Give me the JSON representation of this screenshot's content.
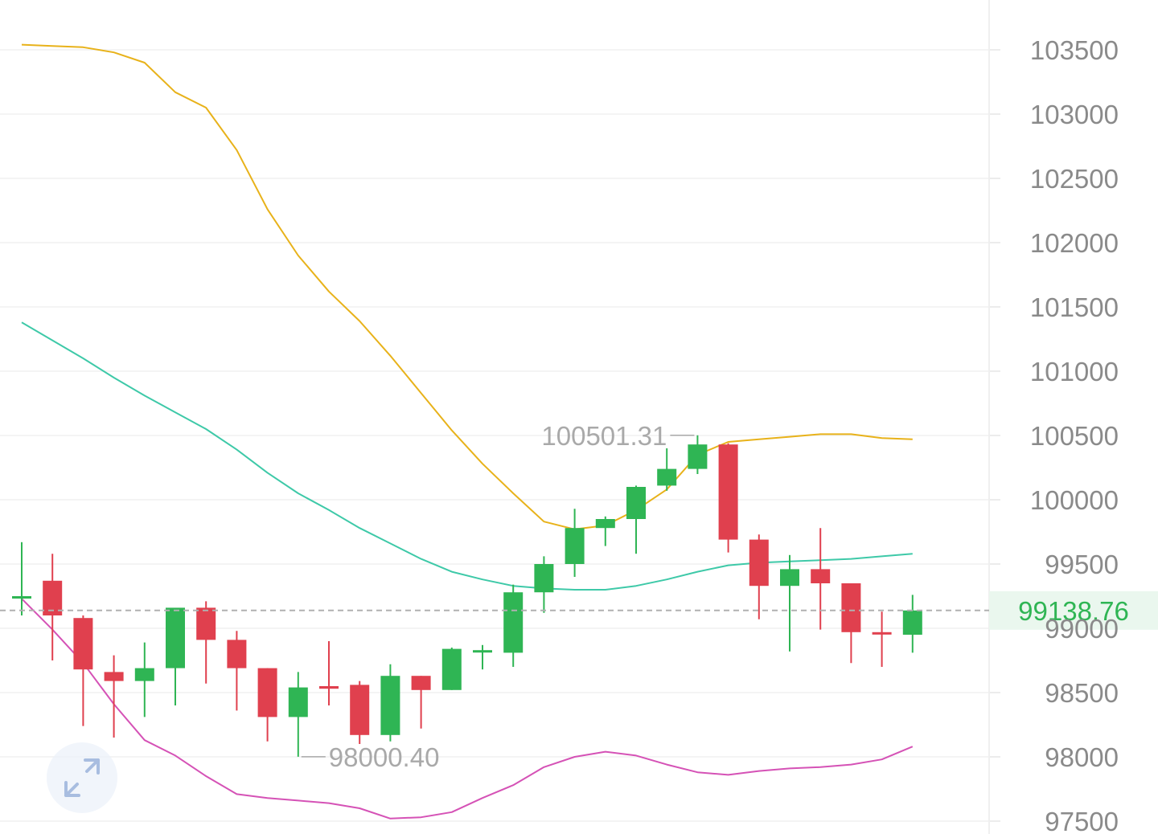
{
  "chart_data": {
    "type": "candlestick",
    "y_axis": {
      "position": "right",
      "ticks": [
        103500,
        103000,
        102500,
        102000,
        101500,
        101000,
        100500,
        100000,
        99500,
        99000,
        98500,
        98000,
        97500
      ],
      "tick_labels": [
        "103500",
        "103000",
        "102500",
        "102000",
        "101500",
        "101000",
        "100500",
        "100000",
        "99500",
        "99000",
        "98500",
        "98000",
        "97500"
      ]
    },
    "grid": true,
    "candles": [
      {
        "o": 99250,
        "h": 99670,
        "l": 99100,
        "c": 99250
      },
      {
        "o": 99370,
        "h": 99580,
        "l": 98750,
        "c": 99100
      },
      {
        "o": 99080,
        "h": 99100,
        "l": 98240,
        "c": 98680
      },
      {
        "o": 98660,
        "h": 98790,
        "l": 98150,
        "c": 98590
      },
      {
        "o": 98590,
        "h": 98890,
        "l": 98310,
        "c": 98690
      },
      {
        "o": 98690,
        "h": 99150,
        "l": 98400,
        "c": 99160
      },
      {
        "o": 99160,
        "h": 99210,
        "l": 98570,
        "c": 98910
      },
      {
        "o": 98910,
        "h": 98980,
        "l": 98360,
        "c": 98690
      },
      {
        "o": 98690,
        "h": 98690,
        "l": 98120,
        "c": 98310
      },
      {
        "o": 98310,
        "h": 98660,
        "l": 98000.4,
        "c": 98540
      },
      {
        "o": 98550,
        "h": 98900,
        "l": 98400,
        "c": 98530
      },
      {
        "o": 98560,
        "h": 98590,
        "l": 98100,
        "c": 98170
      },
      {
        "o": 98170,
        "h": 98720,
        "l": 98120,
        "c": 98630
      },
      {
        "o": 98630,
        "h": 98630,
        "l": 98220,
        "c": 98520
      },
      {
        "o": 98520,
        "h": 98850,
        "l": 98520,
        "c": 98840
      },
      {
        "o": 98830,
        "h": 98870,
        "l": 98680,
        "c": 98830
      },
      {
        "o": 98810,
        "h": 99340,
        "l": 98700,
        "c": 99280
      },
      {
        "o": 99280,
        "h": 99560,
        "l": 99120,
        "c": 99500
      },
      {
        "o": 99500,
        "h": 99930,
        "l": 99400,
        "c": 99780
      },
      {
        "o": 99780,
        "h": 99870,
        "l": 99640,
        "c": 99850
      },
      {
        "o": 99850,
        "h": 100110,
        "l": 99580,
        "c": 100100
      },
      {
        "o": 100110,
        "h": 100400,
        "l": 100070,
        "c": 100240
      },
      {
        "o": 100240,
        "h": 100501.31,
        "l": 100200,
        "c": 100430
      },
      {
        "o": 100430,
        "h": 100440,
        "l": 99590,
        "c": 99690
      },
      {
        "o": 99690,
        "h": 99730,
        "l": 99070,
        "c": 99330
      },
      {
        "o": 99330,
        "h": 99570,
        "l": 98820,
        "c": 99460
      },
      {
        "o": 99460,
        "h": 99780,
        "l": 98990,
        "c": 99350
      },
      {
        "o": 99350,
        "h": 99350,
        "l": 98730,
        "c": 98970
      },
      {
        "o": 98970,
        "h": 99130,
        "l": 98700,
        "c": 98960
      },
      {
        "o": 98950,
        "h": 99260,
        "l": 98810,
        "c": 99138.76
      }
    ],
    "upper_band": [
      103540,
      103530,
      103520,
      103480,
      103400,
      103170,
      103050,
      102720,
      102260,
      101900,
      101620,
      101390,
      101120,
      100830,
      100540,
      100280,
      100050,
      99830,
      99770,
      99800,
      99920,
      100080,
      100350,
      100450,
      100470,
      100490,
      100510,
      100510,
      100480,
      100470
    ],
    "middle_band": [
      101380,
      101240,
      101100,
      100950,
      100810,
      100680,
      100550,
      100390,
      100210,
      100050,
      99920,
      99780,
      99660,
      99540,
      99440,
      99380,
      99330,
      99310,
      99300,
      99300,
      99330,
      99380,
      99440,
      99490,
      99510,
      99520,
      99530,
      99540,
      99560,
      99580
    ],
    "lower_band": [
      99230,
      98990,
      98730,
      98410,
      98130,
      98010,
      97850,
      97710,
      97680,
      97660,
      97640,
      97600,
      97520,
      97530,
      97570,
      97680,
      97780,
      97920,
      98000,
      98040,
      98010,
      97940,
      97880,
      97860,
      97890,
      97910,
      97920,
      97940,
      97980,
      98080
    ],
    "current_price": 99138.76,
    "current_price_label": "99138.76",
    "high_marker": {
      "value": 100501.31,
      "label": "100501.31",
      "index": 22
    },
    "low_marker": {
      "value": 98000.4,
      "label": "98000.40",
      "index": 9
    }
  },
  "colors": {
    "up": "#2fb554",
    "down": "#e0404e",
    "upper_band": "#e8b21a",
    "middle_band": "#3ec9a8",
    "lower_band": "#d552b6",
    "grid": "#f0f0f0",
    "axis_text": "#8a8a8a",
    "marker_text": "#a9a9a9",
    "price_line": "#b0b0b0",
    "price_tag_bg": "#eaf7ee",
    "price_tag_text": "#2fb554"
  },
  "icons": {
    "expand": "expand-arrows-icon"
  }
}
